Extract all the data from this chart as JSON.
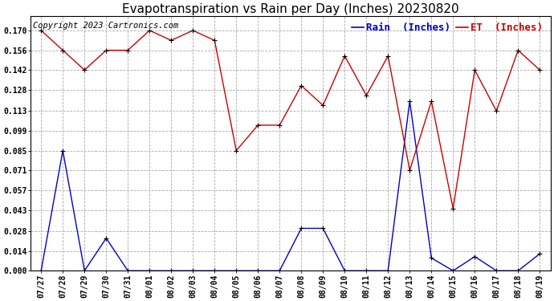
{
  "title": "Evapotranspiration vs Rain per Day (Inches) 20230820",
  "copyright": "Copyright 2023 Cartronics.com",
  "x_labels": [
    "07/27",
    "07/28",
    "07/29",
    "07/30",
    "07/31",
    "08/01",
    "08/02",
    "08/03",
    "08/04",
    "08/05",
    "08/06",
    "08/07",
    "08/08",
    "08/09",
    "08/10",
    "08/11",
    "08/12",
    "08/13",
    "08/14",
    "08/15",
    "08/16",
    "08/17",
    "08/18",
    "08/19"
  ],
  "rain_values": [
    0.0,
    0.085,
    0.0,
    0.023,
    0.0,
    0.0,
    0.0,
    0.0,
    0.0,
    0.0,
    0.0,
    0.0,
    0.03,
    0.03,
    0.0,
    0.0,
    0.0,
    0.12,
    0.009,
    0.0,
    0.01,
    0.0,
    0.0,
    0.012
  ],
  "et_values": [
    0.17,
    0.156,
    0.142,
    0.156,
    0.156,
    0.17,
    0.163,
    0.17,
    0.163,
    0.085,
    0.103,
    0.103,
    0.131,
    0.117,
    0.152,
    0.124,
    0.152,
    0.071,
    0.12,
    0.044,
    0.142,
    0.113,
    0.156,
    0.142
  ],
  "rain_color": "#0000cc",
  "et_color": "#cc0000",
  "marker_color": "#000000",
  "background_color": "#ffffff",
  "grid_color": "#aaaaaa",
  "ylim": [
    0.0,
    0.18
  ],
  "yticks": [
    0.0,
    0.014,
    0.028,
    0.043,
    0.057,
    0.071,
    0.085,
    0.099,
    0.113,
    0.128,
    0.142,
    0.156,
    0.17
  ],
  "legend_rain_label": "Rain  (Inches)",
  "legend_et_label": "ET  (Inches)",
  "title_fontsize": 11,
  "tick_fontsize": 7,
  "legend_fontsize": 9,
  "copyright_fontsize": 7.5
}
